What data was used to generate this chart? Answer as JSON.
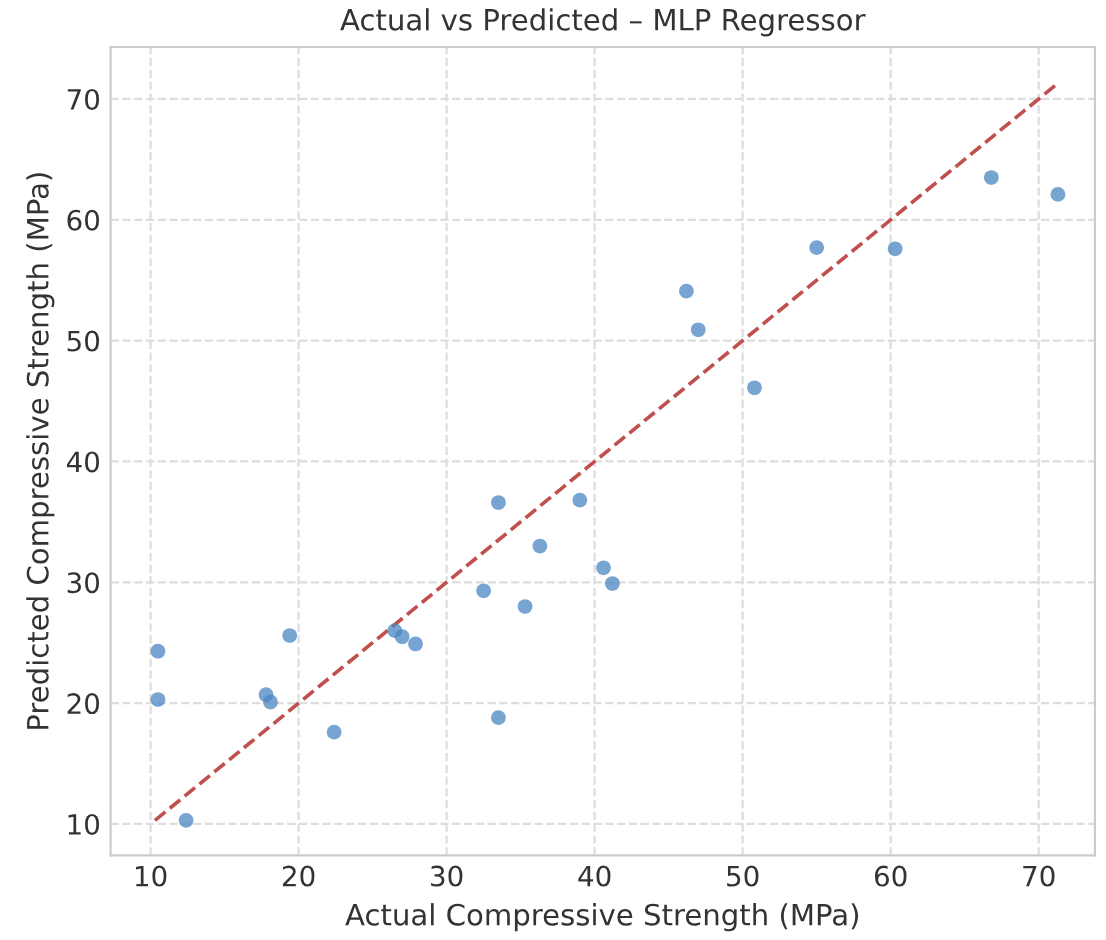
{
  "chart_data": {
    "type": "scatter",
    "title": "Actual vs Predicted – MLP Regressor",
    "xlabel": "Actual Compressive Strength (MPa)",
    "ylabel": "Predicted Compressive Strength (MPa)",
    "series": [
      {
        "color": "#4a86c0",
        "x": [
          10.5,
          10.5,
          12.4,
          17.8,
          18.1,
          19.4,
          22.4,
          26.5,
          27.0,
          27.9,
          32.5,
          33.5,
          33.5,
          35.3,
          36.3,
          39.0,
          40.6,
          41.2,
          46.2,
          47.0,
          50.8,
          55.0,
          60.3,
          66.8,
          71.3
        ],
        "values": [
          24.3,
          20.3,
          10.3,
          20.7,
          20.1,
          25.6,
          17.6,
          26.0,
          25.5,
          24.9,
          29.3,
          36.6,
          18.8,
          28.0,
          33.0,
          36.8,
          31.2,
          29.9,
          54.1,
          50.9,
          46.1,
          57.7,
          57.6,
          63.5,
          62.1
        ]
      },
      {
        "type": "line",
        "color": "#c0504d",
        "line_style": "dashed",
        "marker": "none",
        "x": [
          10.3,
          71.3
        ],
        "values": [
          10.3,
          71.3
        ]
      }
    ],
    "xlim": [
      7.3,
      73.8
    ],
    "ylim": [
      7.4,
      74.3
    ],
    "xticks": [
      10,
      20,
      30,
      40,
      50,
      60,
      70
    ],
    "yticks": [
      10,
      20,
      30,
      40,
      50,
      60,
      70
    ],
    "grid": true,
    "marker": "circle"
  }
}
